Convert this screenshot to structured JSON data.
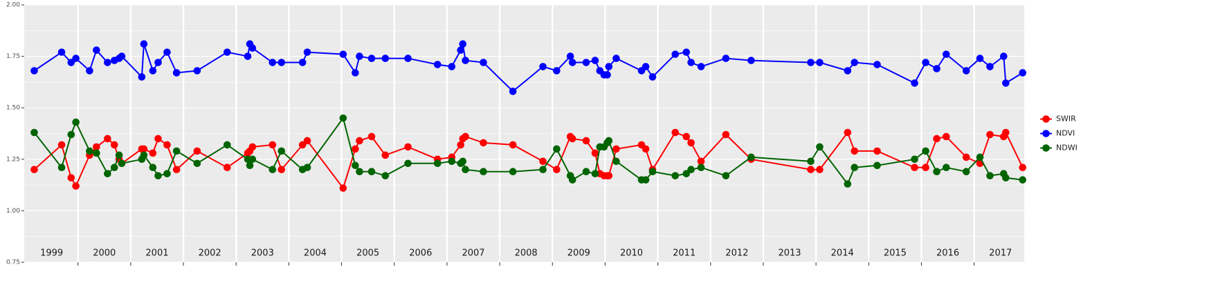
{
  "chart_data": {
    "type": "line",
    "x": [
      1999.17,
      1999.69,
      1999.87,
      1999.96,
      2000.22,
      2000.35,
      2000.56,
      2000.69,
      2000.78,
      2000.83,
      2001.21,
      2001.25,
      2001.42,
      2001.52,
      2001.69,
      2001.87,
      2002.26,
      2002.83,
      2003.22,
      2003.26,
      2003.31,
      2003.69,
      2003.86,
      2004.26,
      2004.35,
      2005.03,
      2005.26,
      2005.34,
      2005.57,
      2005.83,
      2006.26,
      2006.82,
      2007.09,
      2007.26,
      2007.3,
      2007.35,
      2007.69,
      2008.25,
      2008.82,
      2009.08,
      2009.34,
      2009.38,
      2009.64,
      2009.81,
      2009.9,
      2009.98,
      2010.04,
      2010.07,
      2010.21,
      2010.69,
      2010.77,
      2010.9,
      2011.33,
      2011.54,
      2011.63,
      2011.82,
      2012.29,
      2012.77,
      2013.9,
      2014.07,
      2014.6,
      2014.73,
      2015.16,
      2015.87,
      2016.08,
      2016.29,
      2016.47,
      2016.85,
      2017.11,
      2017.3,
      2017.56,
      2017.6,
      2017.92
    ],
    "series": [
      {
        "name": "SWIR",
        "color": "#ff0000",
        "values": [
          1.2,
          1.32,
          1.16,
          1.12,
          1.27,
          1.31,
          1.35,
          1.32,
          1.25,
          1.23,
          1.3,
          1.3,
          1.28,
          1.35,
          1.32,
          1.2,
          1.29,
          1.21,
          1.28,
          1.29,
          1.31,
          1.32,
          1.2,
          1.32,
          1.34,
          1.11,
          1.3,
          1.34,
          1.36,
          1.27,
          1.31,
          1.25,
          1.26,
          1.32,
          1.35,
          1.36,
          1.33,
          1.32,
          1.24,
          1.2,
          1.36,
          1.35,
          1.34,
          1.28,
          1.18,
          1.17,
          1.17,
          1.17,
          1.3,
          1.32,
          1.3,
          1.2,
          1.38,
          1.36,
          1.33,
          1.24,
          1.37,
          1.25,
          1.2,
          1.2,
          1.38,
          1.29,
          1.29,
          1.21,
          1.21,
          1.35,
          1.36,
          1.26,
          1.23,
          1.37,
          1.36,
          1.38,
          1.21
        ]
      },
      {
        "name": "NDVI",
        "color": "#0000ff",
        "values": [
          1.68,
          1.77,
          1.72,
          1.74,
          1.68,
          1.78,
          1.72,
          1.73,
          1.74,
          1.75,
          1.65,
          1.81,
          1.68,
          1.72,
          1.77,
          1.67,
          1.68,
          1.77,
          1.75,
          1.81,
          1.79,
          1.72,
          1.72,
          1.72,
          1.77,
          1.76,
          1.67,
          1.75,
          1.74,
          1.74,
          1.74,
          1.71,
          1.7,
          1.78,
          1.81,
          1.73,
          1.72,
          1.58,
          1.7,
          1.68,
          1.75,
          1.72,
          1.72,
          1.73,
          1.68,
          1.66,
          1.66,
          1.7,
          1.74,
          1.68,
          1.7,
          1.65,
          1.76,
          1.77,
          1.72,
          1.7,
          1.74,
          1.73,
          1.72,
          1.72,
          1.68,
          1.72,
          1.71,
          1.62,
          1.72,
          1.69,
          1.76,
          1.68,
          1.74,
          1.7,
          1.75,
          1.62,
          1.67
        ]
      },
      {
        "name": "NDWI",
        "color": "#006400",
        "values": [
          1.38,
          1.21,
          1.37,
          1.43,
          1.29,
          1.28,
          1.18,
          1.21,
          1.27,
          1.23,
          1.25,
          1.27,
          1.21,
          1.17,
          1.18,
          1.29,
          1.23,
          1.32,
          1.25,
          1.22,
          1.25,
          1.2,
          1.29,
          1.2,
          1.21,
          1.45,
          1.22,
          1.19,
          1.19,
          1.17,
          1.23,
          1.23,
          1.24,
          1.23,
          1.24,
          1.2,
          1.19,
          1.19,
          1.2,
          1.3,
          1.17,
          1.15,
          1.19,
          1.18,
          1.31,
          1.31,
          1.33,
          1.34,
          1.24,
          1.15,
          1.15,
          1.19,
          1.17,
          1.18,
          1.2,
          1.21,
          1.17,
          1.26,
          1.24,
          1.31,
          1.13,
          1.21,
          1.22,
          1.25,
          1.29,
          1.19,
          1.21,
          1.19,
          1.26,
          1.17,
          1.18,
          1.16,
          1.15
        ]
      }
    ],
    "xlim": [
      1998.98,
      2017.95
    ],
    "xticks": [
      {
        "value": 1999.5,
        "label": "1999"
      },
      {
        "value": 2000.5,
        "label": "2000"
      },
      {
        "value": 2001.5,
        "label": "2001"
      },
      {
        "value": 2002.5,
        "label": "2002"
      },
      {
        "value": 2003.5,
        "label": "2003"
      },
      {
        "value": 2004.5,
        "label": "2004"
      },
      {
        "value": 2005.5,
        "label": "2005"
      },
      {
        "value": 2006.5,
        "label": "2006"
      },
      {
        "value": 2007.5,
        "label": "2007"
      },
      {
        "value": 2008.5,
        "label": "2008"
      },
      {
        "value": 2009.5,
        "label": "2009"
      },
      {
        "value": 2010.5,
        "label": "2010"
      },
      {
        "value": 2011.5,
        "label": "2011"
      },
      {
        "value": 2012.5,
        "label": "2012"
      },
      {
        "value": 2013.5,
        "label": "2013"
      },
      {
        "value": 2014.5,
        "label": "2014"
      },
      {
        "value": 2015.5,
        "label": "2015"
      },
      {
        "value": 2016.5,
        "label": "2016"
      },
      {
        "value": 2017.5,
        "label": "2017"
      }
    ],
    "x_breaks": [
      2000,
      2001,
      2002,
      2003,
      2004,
      2005,
      2006,
      2007,
      2008,
      2009,
      2010,
      2011,
      2012,
      2013,
      2014,
      2015,
      2016,
      2017
    ],
    "ylim": [
      0.75,
      2.0
    ],
    "yticks": [
      {
        "value": 0.75,
        "label": "0.75"
      },
      {
        "value": 1,
        "label": "1.00"
      },
      {
        "value": 1.25,
        "label": "1.25"
      },
      {
        "value": 1.5,
        "label": "1.50"
      },
      {
        "value": 1.75,
        "label": "1.75"
      },
      {
        "value": 2,
        "label": "2.00"
      }
    ],
    "grid": true,
    "legend": "right"
  }
}
